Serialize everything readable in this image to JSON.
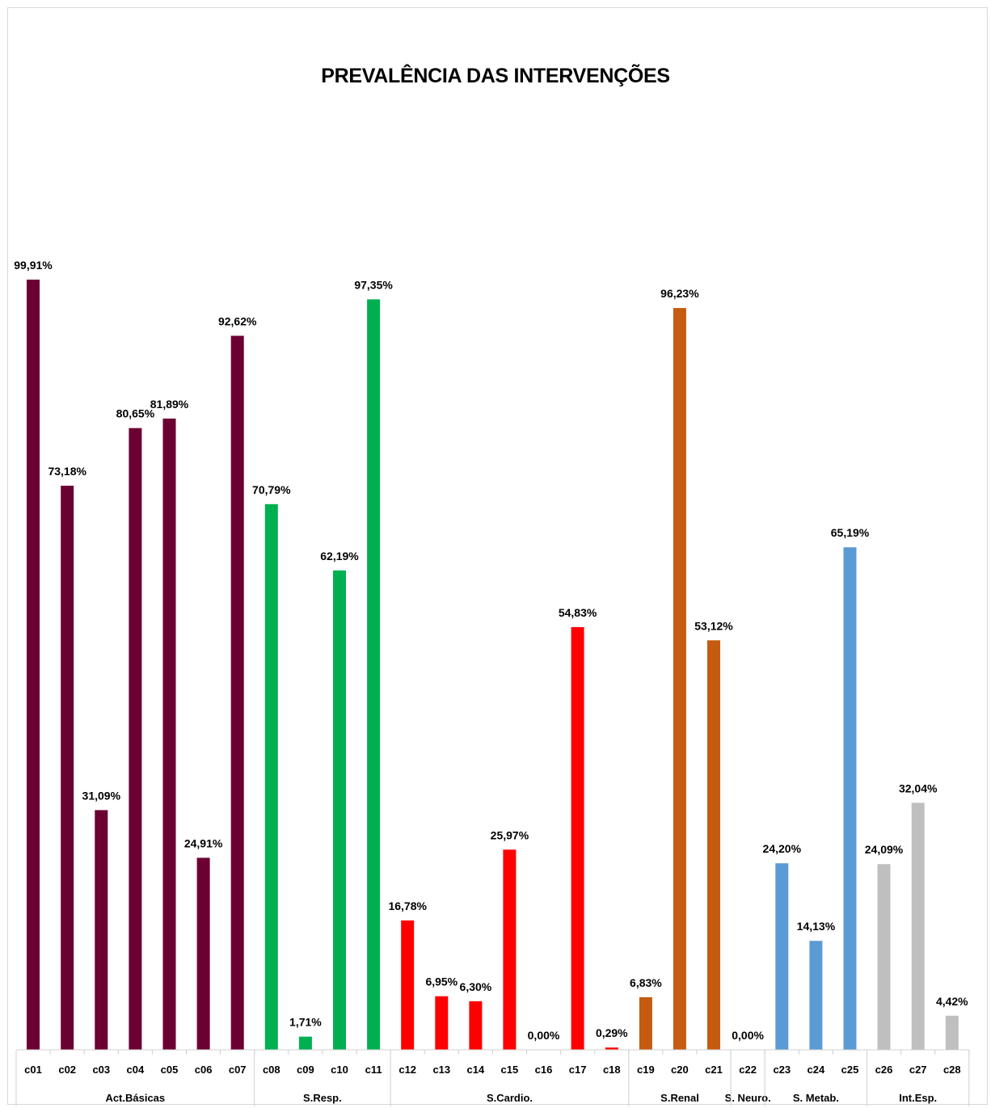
{
  "chart_data": {
    "type": "bar",
    "title": "PREVALÊNCIA DAS INTERVENÇÕES",
    "xlabel": "",
    "ylabel": "",
    "ylim": [
      0,
      100
    ],
    "grid": false,
    "categories": [
      "c01",
      "c02",
      "c03",
      "c04",
      "c05",
      "c06",
      "c07",
      "c08",
      "c09",
      "c10",
      "c11",
      "c12",
      "c13",
      "c14",
      "c15",
      "c16",
      "c17",
      "c18",
      "c19",
      "c20",
      "c21",
      "c22",
      "c23",
      "c24",
      "c25",
      "c26",
      "c27",
      "c28"
    ],
    "values": [
      99.91,
      73.18,
      31.09,
      80.65,
      81.89,
      24.91,
      92.62,
      70.79,
      1.71,
      62.19,
      97.35,
      16.78,
      6.95,
      6.3,
      25.97,
      0.0,
      54.83,
      0.29,
      6.83,
      96.23,
      53.12,
      0.0,
      24.2,
      14.13,
      65.19,
      24.09,
      32.04,
      4.42
    ],
    "data_labels": [
      "99,91%",
      "73,18%",
      "31,09%",
      "80,65%",
      "81,89%",
      "24,91%",
      "92,62%",
      "70,79%",
      "1,71%",
      "62,19%",
      "97,35%",
      "16,78%",
      "6,95%",
      "6,30%",
      "25,97%",
      "0,00%",
      "54,83%",
      "0,29%",
      "6,83%",
      "96,23%",
      "53,12%",
      "0,00%",
      "24,20%",
      "14,13%",
      "65,19%",
      "24,09%",
      "32,04%",
      "4,42%"
    ],
    "groups": [
      {
        "name": "Act.Básicas",
        "categories": [
          "c01",
          "c02",
          "c03",
          "c04",
          "c05",
          "c06",
          "c07"
        ],
        "color": "#6b0033"
      },
      {
        "name": "S.Resp.",
        "categories": [
          "c08",
          "c09",
          "c10",
          "c11"
        ],
        "color": "#00b050"
      },
      {
        "name": "S.Cardio.",
        "categories": [
          "c12",
          "c13",
          "c14",
          "c15",
          "c16",
          "c17",
          "c18"
        ],
        "color": "#ff0000"
      },
      {
        "name": "S.Renal",
        "categories": [
          "c19",
          "c20",
          "c21"
        ],
        "color": "#c55a11"
      },
      {
        "name": "S. Neuro.",
        "categories": [
          "c22"
        ],
        "color": "#7f7f7f"
      },
      {
        "name": "S. Metab.",
        "categories": [
          "c23",
          "c24",
          "c25"
        ],
        "color": "#5b9bd5"
      },
      {
        "name": "Int.Esp.",
        "categories": [
          "c26",
          "c27",
          "c28"
        ],
        "color": "#bfbfbf"
      }
    ]
  }
}
